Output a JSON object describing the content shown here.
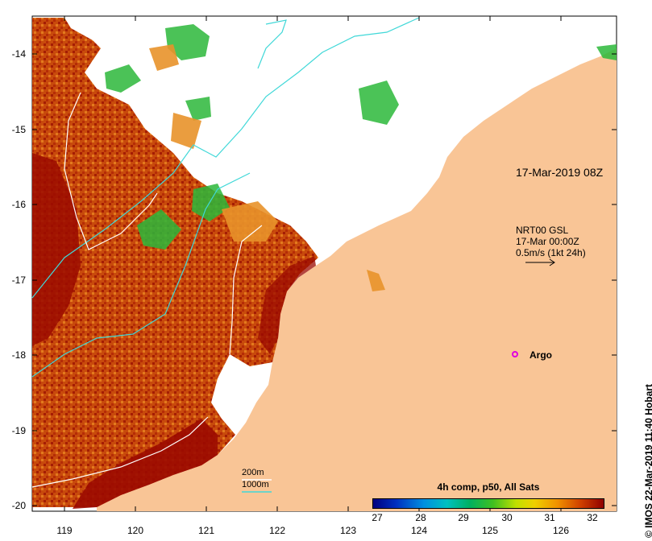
{
  "map": {
    "y_axis_labels": [
      "-14",
      "-15",
      "-16",
      "-17",
      "-18",
      "-19",
      "-20"
    ],
    "x_axis_labels": [
      "119",
      "120",
      "121",
      "122",
      "123",
      "124",
      "125",
      "126"
    ],
    "timestamp": "17-Mar-2019 08Z",
    "current_info": {
      "line1": "NRT00 GSL",
      "line2": "17-Mar 00:00Z",
      "line3": "0.5m/s (1kt 24h)"
    },
    "argo_label": "Argo",
    "contour_legend": {
      "shallow": "200m",
      "deep": "1000m"
    },
    "colorbar": {
      "title": "4h comp, p50, All Sats",
      "ticks": [
        "27",
        "28",
        "29",
        "30",
        "31",
        "32"
      ]
    },
    "credit": "© IMOS 22-Mar-2019 11:40 Hobart",
    "colors": {
      "land": "#f9c596",
      "hot": "#9b0a00",
      "warm": "#d4560a",
      "mid": "#e8922a",
      "cool": "#2cb83a",
      "argo": "#e000e0",
      "contour_200": "#40d8d8",
      "contour_1000": "#ffffff"
    }
  }
}
